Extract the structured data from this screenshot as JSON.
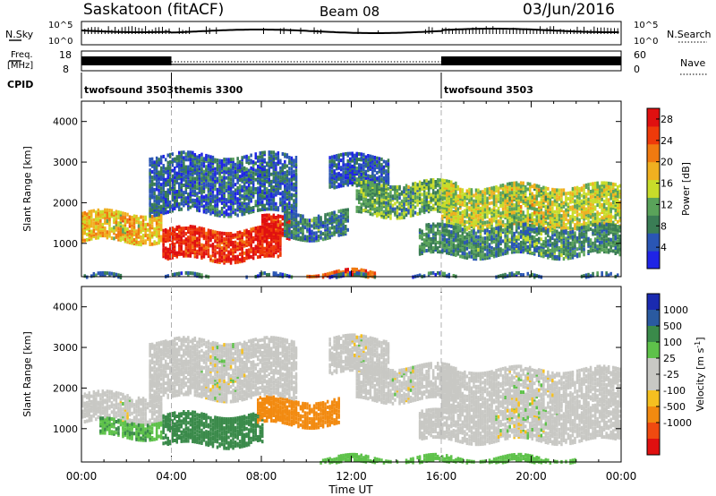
{
  "header": {
    "station": "Saskatoon (fitACF)",
    "beam": "Beam 08",
    "date": "03/Jun/2016"
  },
  "top_panels": {
    "nsky_label": "N.Sky",
    "nsky_ticks": [
      "10^5",
      "10^0"
    ],
    "nsearch_label": "N.Search",
    "nsearch_ticks": [
      "10^5",
      "10^0"
    ],
    "freq_label": "Freq.",
    "freq_unit": "[MHz]",
    "freq_ticks": [
      18,
      8
    ],
    "nave_label": "Nave",
    "nave_ticks": [
      60,
      0
    ],
    "cpid_label": "CPID",
    "cpid_segments": [
      {
        "name": "twofsound 3503",
        "start": 0,
        "end": 4
      },
      {
        "name": "themis 3300",
        "start": 4,
        "end": 16
      },
      {
        "name": "twofsound 3503",
        "start": 16,
        "end": 24
      }
    ]
  },
  "colors": {
    "power_scale": [
      "#1f24e6",
      "#2a56b5",
      "#3a7d55",
      "#5aa35a",
      "#c8dc2a",
      "#f0b020",
      "#f07a10",
      "#ee3a0a",
      "#e01010"
    ],
    "velocity_scale": [
      "#e01010",
      "#f04a10",
      "#f28a10",
      "#f5c020",
      "#c8c8c4",
      "#c8c8c4",
      "#5ec24a",
      "#3a8a4a",
      "#2a5aa0",
      "#1a2ab0"
    ],
    "dashed_line": "#b0b0b0"
  },
  "chart_data": [
    {
      "type": "heatmap",
      "panel": "power",
      "ylabel": "Slant Range [km]",
      "xlabel": "",
      "ylim": [
        180,
        4500
      ],
      "yticks": [
        1000,
        2000,
        3000,
        4000
      ],
      "xlim_hours": [
        0,
        24
      ],
      "colorbar_label": "Power [dB]",
      "colorbar_ticks": [
        4,
        8,
        12,
        16,
        20,
        24,
        28
      ],
      "colorbar_range": [
        0,
        30
      ],
      "bands": [
        {
          "start": 0.0,
          "end": 3.6,
          "range_low": 1100,
          "range_high": 1800,
          "level": 18
        },
        {
          "start": 3.6,
          "end": 8.8,
          "range_low": 650,
          "range_high": 1400,
          "level": 27
        },
        {
          "start": 8.0,
          "end": 9.2,
          "range_low": 1150,
          "range_high": 1650,
          "level": 28
        },
        {
          "start": 9.0,
          "end": 11.8,
          "range_low": 1200,
          "range_high": 1800,
          "level": 8
        },
        {
          "start": 3.0,
          "end": 9.5,
          "range_low": 1800,
          "range_high": 3200,
          "level": 6
        },
        {
          "start": 11.0,
          "end": 13.6,
          "range_low": 2400,
          "range_high": 3200,
          "level": 5
        },
        {
          "start": 12.2,
          "end": 16.6,
          "range_low": 1750,
          "range_high": 2550,
          "level": 11
        },
        {
          "start": 16.0,
          "end": 24.0,
          "range_low": 1450,
          "range_high": 2450,
          "level": 15
        },
        {
          "start": 15.0,
          "end": 24.0,
          "range_low": 750,
          "range_high": 1450,
          "level": 9
        },
        {
          "start": 10.0,
          "end": 13.0,
          "range_low": 180,
          "range_high": 320,
          "level": 24
        },
        {
          "start": 0.0,
          "end": 24.0,
          "range_low": 180,
          "range_high": 260,
          "level": 7
        }
      ]
    },
    {
      "type": "heatmap",
      "panel": "velocity",
      "ylabel": "Slant Range [km]",
      "xlabel": "Time UT",
      "ylim": [
        180,
        4500
      ],
      "yticks": [
        1000,
        2000,
        3000,
        4000
      ],
      "xticks": [
        "00:00",
        "04:00",
        "08:00",
        "12:00",
        "16:00",
        "20:00",
        "00:00"
      ],
      "xlim_hours": [
        0,
        24
      ],
      "colorbar_label": "Velocity [m s^-1]",
      "colorbar_ticks": [
        1000,
        500,
        100,
        25,
        -25,
        -100,
        -500,
        -1000
      ],
      "bands": [
        {
          "start": 0.0,
          "end": 3.6,
          "range_low": 1200,
          "range_high": 1900,
          "level": 0
        },
        {
          "start": 0.8,
          "end": 3.6,
          "range_low": 850,
          "range_high": 1250,
          "level": 90
        },
        {
          "start": 3.6,
          "end": 8.0,
          "range_low": 650,
          "range_high": 1400,
          "level": 180
        },
        {
          "start": 7.8,
          "end": 11.4,
          "range_low": 1150,
          "range_high": 1750,
          "level": -200
        },
        {
          "start": 3.0,
          "end": 9.5,
          "range_low": 1800,
          "range_high": 3200,
          "level": 0
        },
        {
          "start": 11.0,
          "end": 13.6,
          "range_low": 2400,
          "range_high": 3300,
          "level": 0
        },
        {
          "start": 12.2,
          "end": 16.6,
          "range_low": 1750,
          "range_high": 2600,
          "level": 0
        },
        {
          "start": 16.0,
          "end": 24.0,
          "range_low": 1450,
          "range_high": 2500,
          "level": 0
        },
        {
          "start": 15.0,
          "end": 24.0,
          "range_low": 750,
          "range_high": 1450,
          "level": 0
        },
        {
          "start": 10.5,
          "end": 22.0,
          "range_low": 180,
          "range_high": 340,
          "level": 70
        }
      ]
    }
  ]
}
